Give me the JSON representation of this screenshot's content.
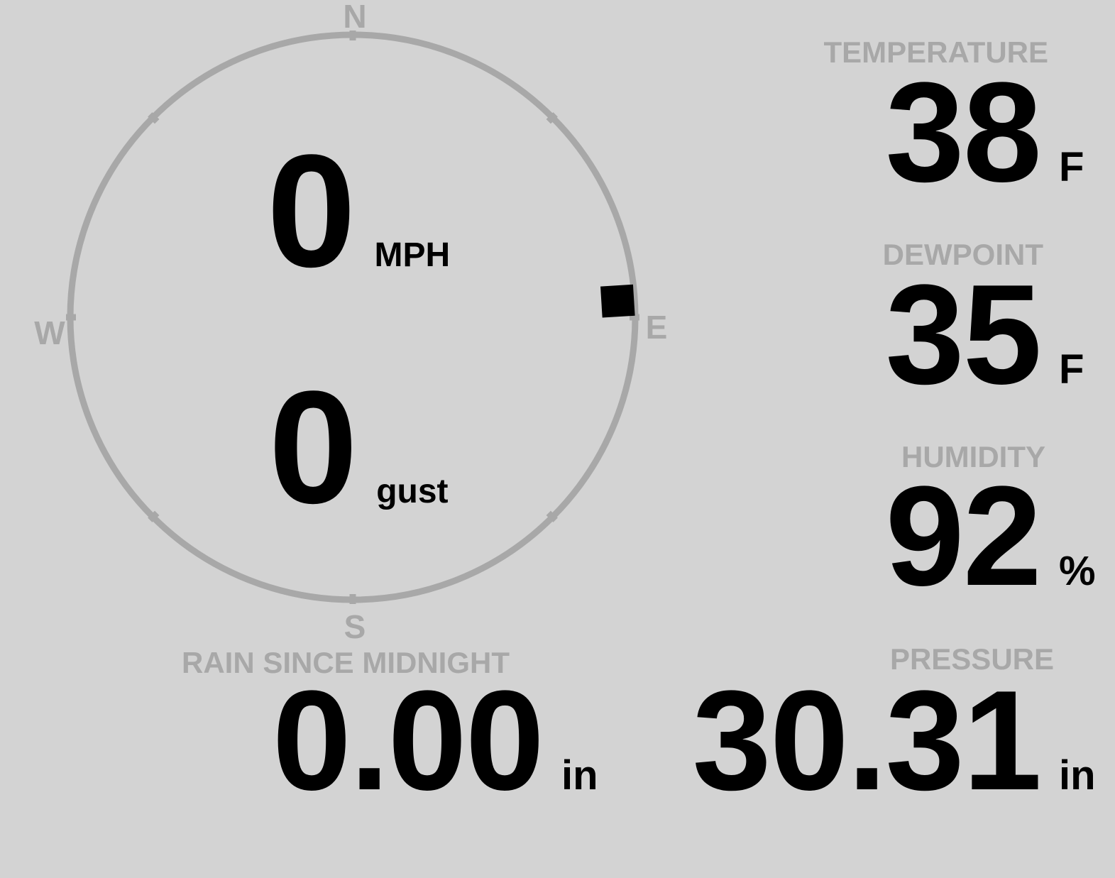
{
  "theme": {
    "background": "#d3d3d3",
    "muted": "#a8a8a8",
    "foreground": "#000000"
  },
  "wind": {
    "compass": {
      "north": "N",
      "east": "E",
      "south": "S",
      "west": "W",
      "direction_deg": 86.5
    },
    "speed": {
      "value": "0",
      "unit": "MPH"
    },
    "gust": {
      "value": "0",
      "unit": "gust"
    }
  },
  "metrics": {
    "temperature": {
      "label": "TEMPERATURE",
      "value": "38",
      "unit": "F"
    },
    "dewpoint": {
      "label": "DEWPOINT",
      "value": "35",
      "unit": "F"
    },
    "humidity": {
      "label": "HUMIDITY",
      "value": "92",
      "unit": "%"
    },
    "rain": {
      "label": "RAIN SINCE MIDNIGHT",
      "value": "0.00",
      "unit": "in"
    },
    "pressure": {
      "label": "PRESSURE",
      "value": "30.31",
      "unit": "in"
    }
  }
}
